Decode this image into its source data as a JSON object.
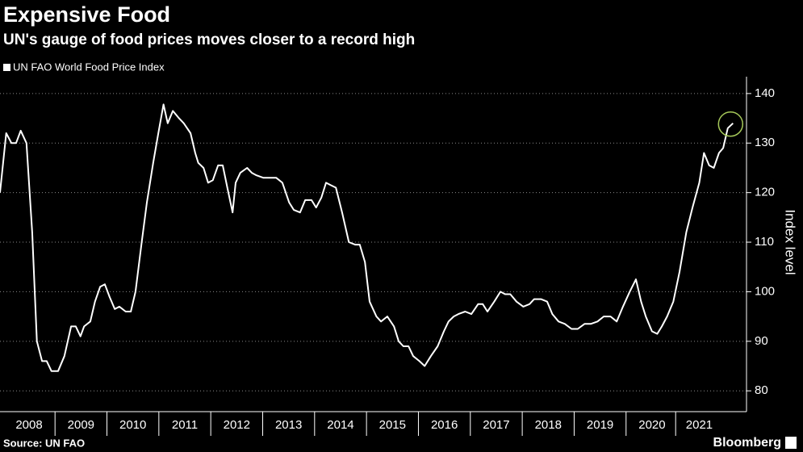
{
  "chart_data": {
    "type": "line",
    "title": "Expensive Food",
    "subtitle": "UN's gauge of food prices moves closer to a record high",
    "y_label": "Index level",
    "source": "Source: UN FAO",
    "brand": "Bloomberg",
    "grid": true,
    "xlim": [
      2007.94,
      2022.32
    ],
    "ylim": [
      75.8,
      143.4
    ],
    "yticks": [
      80,
      90,
      100,
      110,
      120,
      130,
      140
    ],
    "xticks": [
      {
        "value": 2008.5,
        "label": "2008"
      },
      {
        "value": 2009.5,
        "label": "2009"
      },
      {
        "value": 2010.5,
        "label": "2010"
      },
      {
        "value": 2011.5,
        "label": "2011"
      },
      {
        "value": 2012.5,
        "label": "2012"
      },
      {
        "value": 2013.5,
        "label": "2013"
      },
      {
        "value": 2014.5,
        "label": "2014"
      },
      {
        "value": 2015.5,
        "label": "2015"
      },
      {
        "value": 2016.5,
        "label": "2016"
      },
      {
        "value": 2017.5,
        "label": "2017"
      },
      {
        "value": 2018.5,
        "label": "2018"
      },
      {
        "value": 2019.5,
        "label": "2019"
      },
      {
        "value": 2020.5,
        "label": "2020"
      },
      {
        "value": 2021.41,
        "label": "2021"
      }
    ],
    "x": [
      2007.94,
      2008.06,
      2008.16,
      2008.25,
      2008.34,
      2008.45,
      2008.56,
      2008.65,
      2008.75,
      2008.84,
      2008.93,
      2009.06,
      2009.18,
      2009.31,
      2009.4,
      2009.49,
      2009.56,
      2009.68,
      2009.77,
      2009.87,
      2009.96,
      2010.05,
      2010.15,
      2010.24,
      2010.36,
      2010.46,
      2010.55,
      2010.67,
      2010.77,
      2010.89,
      2010.99,
      2011.09,
      2011.17,
      2011.27,
      2011.39,
      2011.48,
      2011.61,
      2011.7,
      2011.76,
      2011.86,
      2011.95,
      2012.04,
      2012.14,
      2012.23,
      2012.32,
      2012.42,
      2012.48,
      2012.57,
      2012.7,
      2012.79,
      2012.88,
      2013.01,
      2013.13,
      2013.26,
      2013.38,
      2013.51,
      2013.6,
      2013.72,
      2013.82,
      2013.94,
      2014.03,
      2014.13,
      2014.22,
      2014.31,
      2014.41,
      2014.53,
      2014.66,
      2014.78,
      2014.87,
      2014.97,
      2015.06,
      2015.19,
      2015.28,
      2015.4,
      2015.53,
      2015.62,
      2015.71,
      2015.81,
      2015.9,
      2016.02,
      2016.12,
      2016.24,
      2016.37,
      2016.49,
      2016.58,
      2016.68,
      2016.77,
      2016.9,
      2017.02,
      2017.15,
      2017.24,
      2017.33,
      2017.46,
      2017.58,
      2017.67,
      2017.77,
      2017.89,
      2018.02,
      2018.14,
      2018.23,
      2018.36,
      2018.48,
      2018.58,
      2018.7,
      2018.82,
      2018.95,
      2019.07,
      2019.2,
      2019.32,
      2019.45,
      2019.57,
      2019.7,
      2019.82,
      2019.94,
      2020.07,
      2020.19,
      2020.29,
      2020.38,
      2020.5,
      2020.6,
      2020.69,
      2020.79,
      2020.91,
      2021.03,
      2021.16,
      2021.28,
      2021.41,
      2021.5,
      2021.6,
      2021.69,
      2021.79,
      2021.87,
      2021.96,
      2022.06
    ],
    "series": [
      {
        "name": "UN FAO World Food Price Index",
        "color": "#ffffff",
        "values": [
          120,
          132,
          130,
          130,
          132.5,
          130,
          112,
          90,
          86,
          86,
          84,
          84,
          87,
          93,
          93,
          91,
          93,
          94,
          98,
          101,
          101.5,
          99,
          96.5,
          97,
          96,
          96,
          100,
          110,
          118,
          126,
          132,
          137.8,
          134,
          136.5,
          135,
          134,
          132,
          128,
          126,
          125,
          122,
          122.5,
          125.5,
          125.5,
          121,
          116,
          122,
          124,
          125,
          124,
          123.5,
          123,
          123,
          123,
          122,
          118,
          116.5,
          116,
          118.5,
          118.5,
          117,
          119,
          122,
          121.5,
          121,
          116,
          110,
          109.5,
          109.5,
          106,
          98,
          95,
          94,
          95,
          93,
          90,
          89,
          89,
          87,
          86,
          85,
          87,
          89,
          92,
          94,
          95,
          95.5,
          96,
          95.5,
          97.5,
          97.5,
          96,
          98,
          100,
          99.5,
          99.5,
          98,
          97,
          97.5,
          98.5,
          98.5,
          98,
          95.5,
          94,
          93.5,
          92.5,
          92.5,
          93.5,
          93.5,
          94,
          95,
          95,
          94,
          97,
          100,
          102.5,
          98,
          95,
          92,
          91.5,
          93,
          95,
          98,
          104,
          112,
          117,
          122,
          128,
          125.5,
          125,
          128,
          129,
          133,
          134
        ]
      }
    ]
  }
}
